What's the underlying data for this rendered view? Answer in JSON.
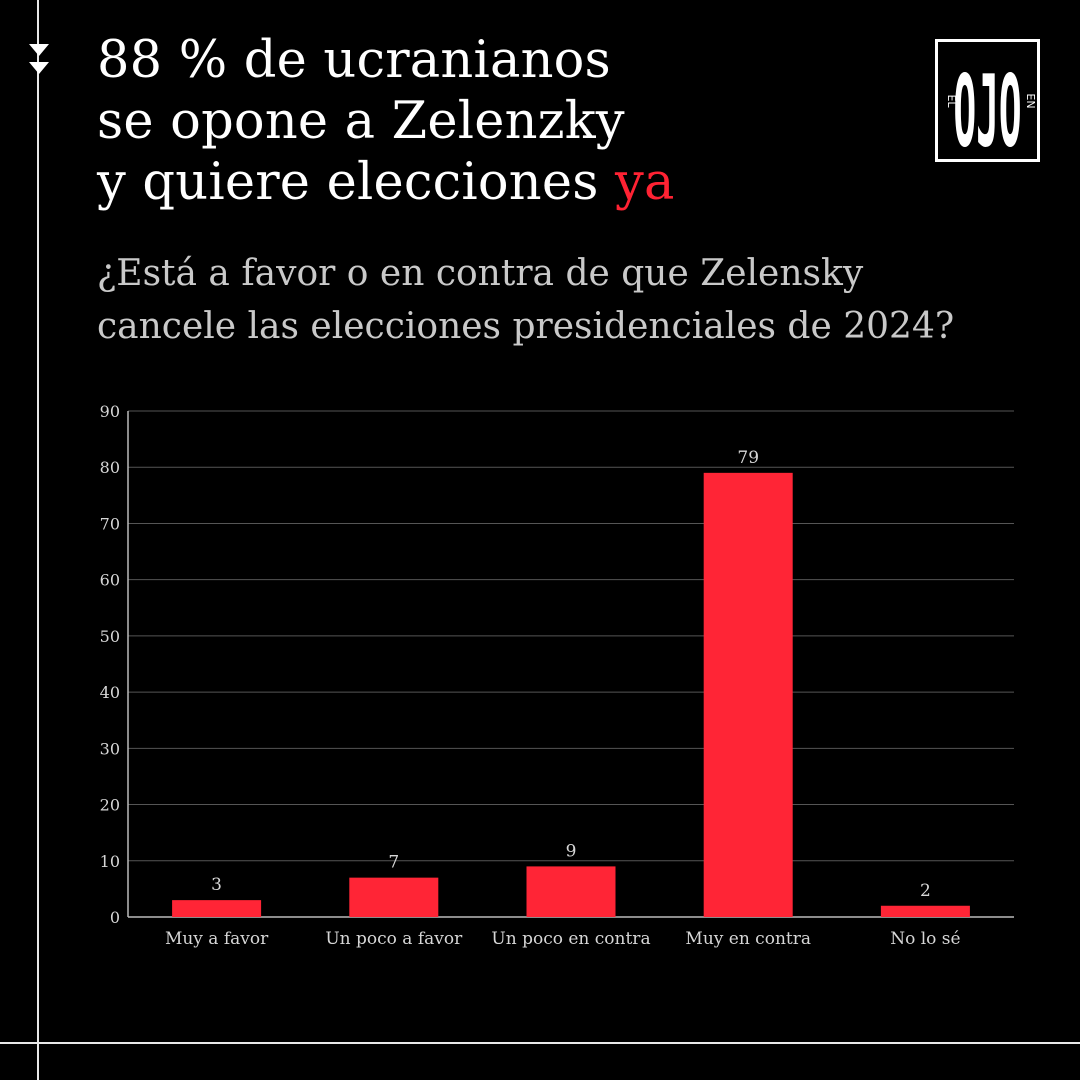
{
  "headline": {
    "line1": "88 % de ucranianos",
    "line2": "se opone a Zelenzky",
    "line3_main": "y quiere elecciones",
    "line3_accent": "ya"
  },
  "question": {
    "line1": "¿Está a favor o en contra de que Zelensky",
    "line2": "cancele las elecciones presidenciales de 2024?"
  },
  "logo": {
    "text_el": "EL",
    "text_ojo": "OJO",
    "text_en": "EN"
  },
  "colors": {
    "background": "#000000",
    "accent": "#ff2233",
    "bar": "#ff2536",
    "headline": "#ffffff",
    "question": "#c9c9c9",
    "axis_text": "#d6d6d6",
    "grid": "#555555"
  },
  "icons": [
    "double-chevron-down-icon"
  ],
  "chart_data": {
    "type": "bar",
    "categories": [
      "Muy a favor",
      "Un poco a favor",
      "Un poco en contra",
      "Muy en contra",
      "No lo sé"
    ],
    "values": [
      3,
      7,
      9,
      79,
      2
    ],
    "data_labels": [
      "3",
      "7",
      "9",
      "79",
      "2"
    ],
    "ylim": [
      0,
      90
    ],
    "yticks": [
      0,
      10,
      20,
      30,
      40,
      50,
      60,
      70,
      80,
      90
    ],
    "grid": true,
    "legend": "none",
    "title": "",
    "xlabel": "",
    "ylabel": ""
  }
}
